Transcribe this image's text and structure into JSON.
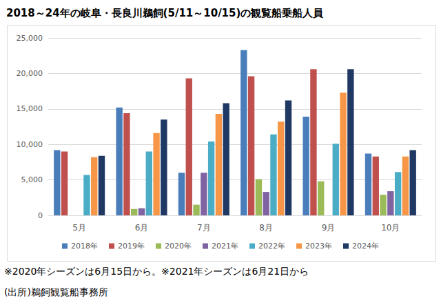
{
  "chart_data": {
    "type": "bar",
    "title": "2018～24年の岐阜・長良川鵜飼(5/11～10/15)の観覧船乗船人員",
    "annotations": [
      "※2020年シーズンは6月15日から。※2021年シーズンは6月21日から",
      "(出所)鵜飼観覧船事務所"
    ],
    "categories": [
      "5月",
      "6月",
      "7月",
      "8月",
      "9月",
      "10月"
    ],
    "series": [
      {
        "name": "2018年",
        "color": "#4a7ebb",
        "values": [
          9200,
          15200,
          6000,
          23300,
          13900,
          8700
        ]
      },
      {
        "name": "2019年",
        "color": "#c0504d",
        "values": [
          9000,
          14400,
          19300,
          19600,
          20600,
          8300
        ]
      },
      {
        "name": "2020年",
        "color": "#9bbb59",
        "values": [
          null,
          900,
          1500,
          5100,
          4800,
          2900
        ]
      },
      {
        "name": "2021年",
        "color": "#8064a2",
        "values": [
          null,
          1000,
          6000,
          3300,
          null,
          3400
        ]
      },
      {
        "name": "2022年",
        "color": "#4bacc6",
        "values": [
          5700,
          9000,
          10400,
          11400,
          10100,
          6100
        ]
      },
      {
        "name": "2023年",
        "color": "#f79646",
        "values": [
          8200,
          11600,
          14300,
          13200,
          17300,
          8300
        ]
      },
      {
        "name": "2024年",
        "color": "#1f3864",
        "values": [
          8400,
          13500,
          15800,
          16200,
          20600,
          9200
        ]
      }
    ],
    "ylim": [
      0,
      25000
    ],
    "yticks": [
      0,
      {
        "value": 5000,
        "label": "5,000"
      },
      {
        "value": 10000,
        "label": "10,000"
      },
      {
        "value": 15000,
        "label": "15,000"
      },
      {
        "value": 20000,
        "label": "20,000"
      },
      {
        "value": 25000,
        "label": "25,000"
      }
    ],
    "grid": true,
    "legend": "bottom"
  }
}
